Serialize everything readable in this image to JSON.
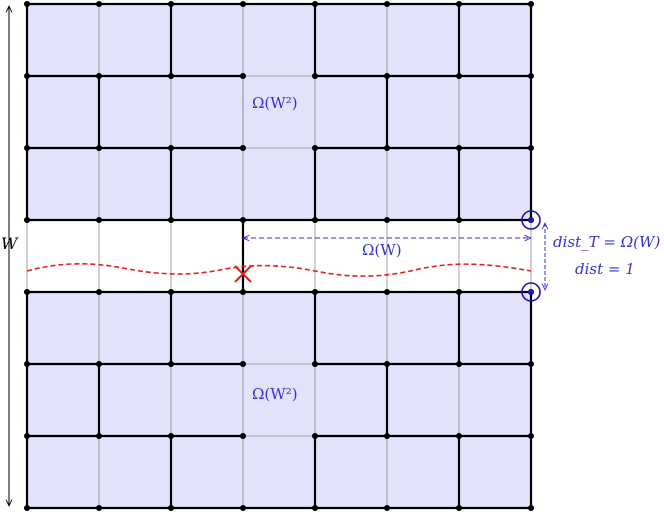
{
  "labels": {
    "side_length": "W",
    "top_region": "Ω(W²)",
    "bottom_region": "Ω(W²)",
    "gap_distance": "Ω(W)",
    "dist_T": "dist_T = Ω(W)",
    "dist": "dist = 1"
  },
  "colors": {
    "shaded_region": "#e2e3fb",
    "region_border": "#1a1aa6",
    "grid_thin": "#8a8a8a",
    "grid_thick": "#000000",
    "annotation_blue": "#3333cc",
    "cut_red": "#e02020",
    "node": "#000000"
  },
  "grid": {
    "columns": 7,
    "rows": 7,
    "removed_row_index": 3,
    "removed_columns_partial": 3
  }
}
